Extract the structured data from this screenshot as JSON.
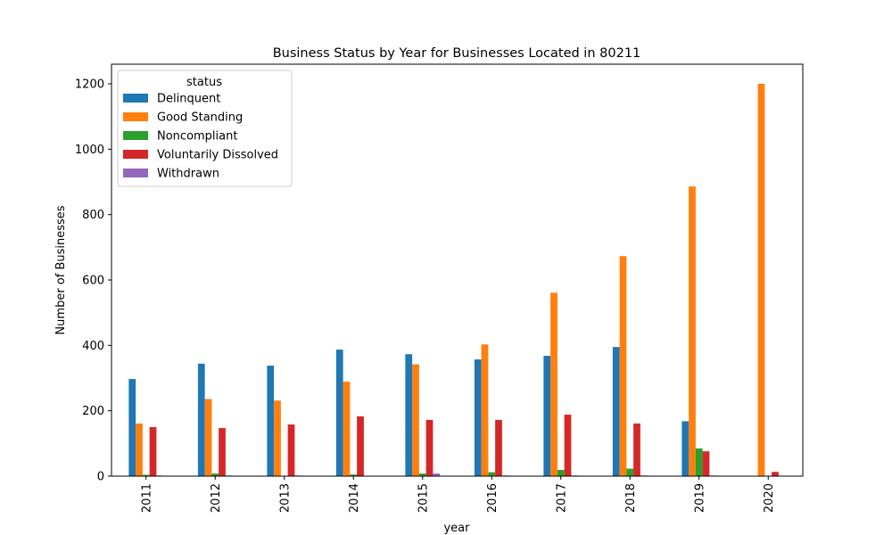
{
  "chart_data": {
    "type": "bar",
    "title": "Business Status by Year for Businesses Located in 80211",
    "xlabel": "year",
    "ylabel": "Number of Businesses",
    "ylim": [
      0,
      1260
    ],
    "yticks": [
      0,
      200,
      400,
      600,
      800,
      1000,
      1200
    ],
    "grid": false,
    "legend": {
      "title": "status",
      "placement": "upper-left"
    },
    "categories": [
      "2011",
      "2012",
      "2013",
      "2014",
      "2015",
      "2016",
      "2017",
      "2018",
      "2019",
      "2020"
    ],
    "series": [
      {
        "name": "Delinquent",
        "color": "#1f77b4",
        "values": [
          297,
          344,
          338,
          387,
          373,
          357,
          368,
          395,
          168,
          0
        ]
      },
      {
        "name": "Good Standing",
        "color": "#ff7f0e",
        "values": [
          161,
          236,
          231,
          289,
          342,
          403,
          561,
          673,
          886,
          1200
        ]
      },
      {
        "name": "Noncompliant",
        "color": "#2ca02c",
        "values": [
          4,
          8,
          1,
          5,
          8,
          12,
          19,
          23,
          85,
          0
        ]
      },
      {
        "name": "Voluntarily Dissolved",
        "color": "#d62728",
        "values": [
          150,
          147,
          158,
          183,
          172,
          172,
          188,
          161,
          76,
          13
        ]
      },
      {
        "name": "Withdrawn",
        "color": "#9467bd",
        "values": [
          2,
          2,
          2,
          0,
          8,
          2,
          2,
          2,
          2,
          0
        ]
      }
    ]
  }
}
